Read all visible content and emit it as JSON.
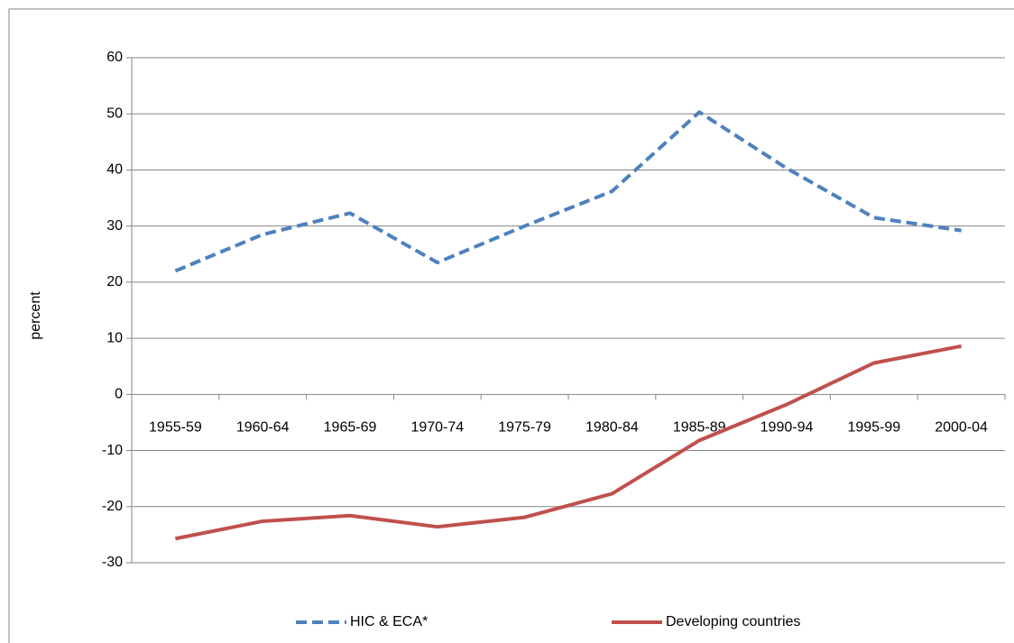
{
  "chart_data": {
    "type": "line",
    "y_label": "percent",
    "categories": [
      "1955-59",
      "1960-64",
      "1965-69",
      "1970-74",
      "1975-79",
      "1980-84",
      "1985-89",
      "1990-94",
      "1995-99",
      "2000-04"
    ],
    "series": [
      {
        "name": "HIC & ECA*",
        "color": "#4f81bd",
        "dashed": true,
        "values": [
          22,
          28.5,
          32.3,
          23.5,
          30,
          36.2,
          50.3,
          40.3,
          31.5,
          29.2
        ]
      },
      {
        "name": "Developing countries",
        "color": "#c0504d",
        "dashed": false,
        "values": [
          -25.7,
          -22.6,
          -21.6,
          -23.6,
          -21.9,
          -17.7,
          -8.2,
          -1.8,
          5.6,
          8.6
        ]
      }
    ],
    "ylim": [
      -30,
      60
    ],
    "yticks": [
      -30,
      -20,
      -10,
      0,
      10,
      20,
      30,
      40,
      50,
      60
    ],
    "grid": true,
    "legend": "bottom"
  }
}
